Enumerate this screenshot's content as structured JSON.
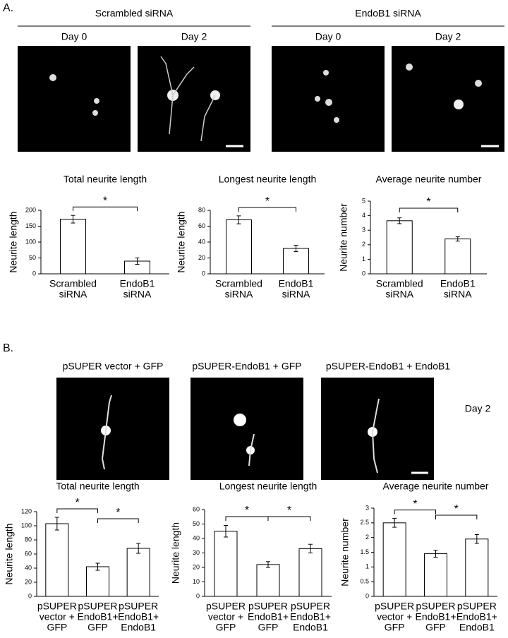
{
  "panel_a": {
    "label": "A.",
    "groups": [
      {
        "title": "Scrambled siRNA",
        "images": [
          "Day 0",
          "Day 2"
        ]
      },
      {
        "title": "EndoB1 siRNA",
        "images": [
          "Day 0",
          "Day 2"
        ]
      }
    ]
  },
  "panel_b": {
    "label": "B.",
    "images": [
      "pSUPER vector + GFP",
      "pSUPER-EndoB1 + GFP",
      "pSUPER-EndoB1 + EndoB1"
    ],
    "day": "Day 2"
  },
  "chart_data": [
    {
      "type": "bar",
      "title": "Total neurite length",
      "y_label": "Neurite length",
      "categories": [
        [
          "Scrambled",
          "siRNA"
        ],
        [
          "EndoB1",
          "siRNA"
        ]
      ],
      "values": [
        172,
        40
      ],
      "errors": [
        12,
        10
      ],
      "ylim": [
        0,
        200
      ],
      "yticks": [
        0,
        50,
        100,
        150,
        200
      ],
      "significance": [
        {
          "pair": [
            0,
            1
          ],
          "label": "*"
        }
      ],
      "color": "#ffffff"
    },
    {
      "type": "bar",
      "title": "Longest neurite length",
      "y_label": "Neurite length",
      "categories": [
        [
          "Scrambled",
          "siRNA"
        ],
        [
          "EndoB1",
          "siRNA"
        ]
      ],
      "values": [
        68,
        32
      ],
      "errors": [
        5,
        4
      ],
      "ylim": [
        0,
        80
      ],
      "yticks": [
        0,
        20,
        40,
        60,
        80
      ],
      "significance": [
        {
          "pair": [
            0,
            1
          ],
          "label": "*"
        }
      ],
      "color": "#ffffff"
    },
    {
      "type": "bar",
      "title": "Average neurite number",
      "y_label": "Neurite number",
      "categories": [
        [
          "Scrambled",
          "siRNA"
        ],
        [
          "EndoB1",
          "siRNA"
        ]
      ],
      "values": [
        3.65,
        2.4
      ],
      "errors": [
        0.2,
        0.15
      ],
      "ylim": [
        0,
        5
      ],
      "yticks": [
        0,
        1,
        2,
        3,
        4,
        5
      ],
      "significance": [
        {
          "pair": [
            0,
            1
          ],
          "label": "*"
        }
      ],
      "color": "#ffffff"
    },
    {
      "type": "bar",
      "title": "Total neurite length",
      "y_label": "Neurite length",
      "categories": [
        [
          "pSUPER",
          "vector +",
          "GFP"
        ],
        [
          "pSUPER",
          "EndoB1+",
          "GFP"
        ],
        [
          "pSUPER",
          "EndoB1+",
          "EndoB1"
        ]
      ],
      "values": [
        103,
        42,
        68
      ],
      "errors": [
        9,
        5,
        7
      ],
      "ylim": [
        0,
        120
      ],
      "yticks": [
        0,
        20,
        40,
        60,
        80,
        100,
        120
      ],
      "significance": [
        {
          "pair": [
            0,
            1
          ],
          "label": "*"
        },
        {
          "pair": [
            1,
            2
          ],
          "label": "*"
        }
      ],
      "color": "#ffffff"
    },
    {
      "type": "bar",
      "title": "Longest neurite length",
      "y_label": "Neurite length",
      "categories": [
        [
          "pSUPER",
          "vector +",
          "GFP"
        ],
        [
          "pSUPER",
          "EndoB1+",
          "GFP"
        ],
        [
          "pSUPER",
          "EndoB1+",
          "EndoB1"
        ]
      ],
      "values": [
        45,
        22,
        33
      ],
      "errors": [
        4,
        2,
        3
      ],
      "ylim": [
        0,
        60
      ],
      "yticks": [
        0,
        10,
        20,
        30,
        40,
        50,
        60
      ],
      "significance": [
        {
          "pair": [
            0,
            1
          ],
          "label": "*"
        },
        {
          "pair": [
            1,
            2
          ],
          "label": "*"
        }
      ],
      "color": "#ffffff"
    },
    {
      "type": "bar",
      "title": "Average neurite number",
      "y_label": "Neurite number",
      "categories": [
        [
          "pSUPER",
          "vector +",
          "GFP"
        ],
        [
          "pSUPER",
          "EndoB1+",
          "GFP"
        ],
        [
          "pSUPER",
          "EndoB1+",
          "EndoB1"
        ]
      ],
      "values": [
        2.5,
        1.45,
        1.95
      ],
      "errors": [
        0.15,
        0.12,
        0.15
      ],
      "ylim": [
        0,
        3
      ],
      "yticks": [
        0,
        0.5,
        1,
        1.5,
        2,
        2.5,
        3
      ],
      "significance": [
        {
          "pair": [
            0,
            1
          ],
          "label": "*"
        },
        {
          "pair": [
            1,
            2
          ],
          "label": "*"
        }
      ],
      "color": "#ffffff"
    }
  ]
}
